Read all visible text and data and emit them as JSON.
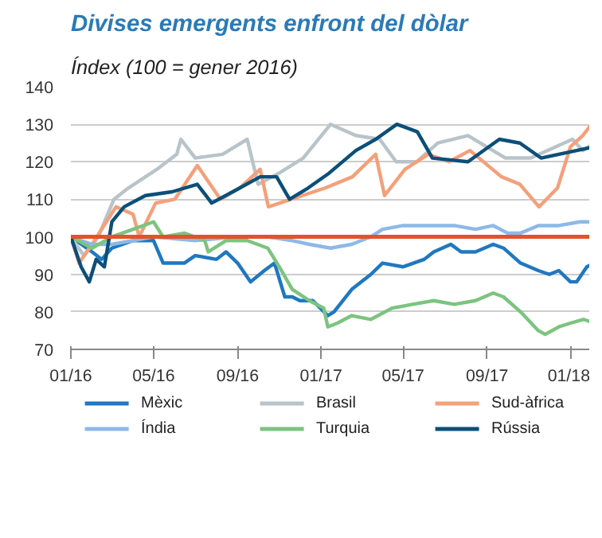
{
  "chart_data": {
    "type": "line",
    "title": "Divises emergents enfront del dòlar",
    "subtitle": "Índex (100 = gener 2016)",
    "xlim": [
      "2016-01-01",
      "2018-02-08"
    ],
    "ylim": [
      70,
      140
    ],
    "xticks": [
      {
        "value": "2016-01-01",
        "label": "01/16"
      },
      {
        "value": "2016-05-01",
        "label": "05/16"
      },
      {
        "value": "2016-09-01",
        "label": "09/16"
      },
      {
        "value": "2017-01-01",
        "label": "01/17"
      },
      {
        "value": "2017-05-01",
        "label": "05/17"
      },
      {
        "value": "2017-09-01",
        "label": "09/17"
      },
      {
        "value": "2018-01-01",
        "label": "01/18"
      }
    ],
    "yticks": [
      70,
      80,
      90,
      100,
      110,
      120,
      130,
      140
    ],
    "grid": "y",
    "legend": "bottom",
    "ref_lines": [
      {
        "axis": "y",
        "value": 100,
        "color": "#e5512b"
      }
    ],
    "series": [
      {
        "name": "Mèxic",
        "color": "#1f78c1",
        "x": [
          "2016-01-01",
          "2016-02-01",
          "2016-02-15",
          "2016-03-01",
          "2016-04-01",
          "2016-05-01",
          "2016-05-15",
          "2016-06-15",
          "2016-07-01",
          "2016-08-01",
          "2016-08-15",
          "2016-09-01",
          "2016-09-20",
          "2016-10-10",
          "2016-10-25",
          "2016-11-09",
          "2016-11-20",
          "2016-12-01",
          "2016-12-20",
          "2017-01-11",
          "2017-01-20",
          "2017-02-15",
          "2017-03-15",
          "2017-04-01",
          "2017-05-01",
          "2017-06-01",
          "2017-06-15",
          "2017-07-10",
          "2017-07-25",
          "2017-08-15",
          "2017-09-10",
          "2017-09-25",
          "2017-10-20",
          "2017-11-15",
          "2017-12-01",
          "2017-12-15",
          "2018-01-01",
          "2018-01-10",
          "2018-01-25",
          "2018-02-05"
        ],
        "values": [
          100,
          96,
          94,
          97,
          99,
          99,
          93,
          93,
          95,
          94,
          96,
          93,
          88,
          91,
          93,
          84,
          84,
          83,
          83,
          79,
          80,
          86,
          90,
          93,
          92,
          94,
          96,
          98,
          96,
          96,
          98,
          97,
          93,
          91,
          90,
          91,
          88,
          88,
          92,
          93
        ]
      },
      {
        "name": "Brasil",
        "color": "#b8c4c9",
        "x": [
          "2016-01-01",
          "2016-01-20",
          "2016-02-10",
          "2016-03-04",
          "2016-03-25",
          "2016-05-06",
          "2016-06-04",
          "2016-06-10",
          "2016-07-01",
          "2016-08-10",
          "2016-09-15",
          "2016-10-01",
          "2016-11-01",
          "2016-12-06",
          "2017-01-15",
          "2017-02-21",
          "2017-03-28",
          "2017-04-21",
          "2017-05-21",
          "2017-06-21",
          "2017-08-04",
          "2017-09-28",
          "2017-11-04",
          "2018-01-04",
          "2018-01-19",
          "2018-02-05"
        ],
        "values": [
          100,
          95,
          100,
          110,
          113,
          118,
          122,
          126,
          121,
          122,
          126,
          114,
          117,
          121,
          130,
          127,
          126,
          120,
          120,
          125,
          127,
          121,
          121,
          126,
          123,
          125
        ]
      },
      {
        "name": "Sud-àfrica",
        "color": "#f4a07a",
        "x": [
          "2016-01-01",
          "2016-01-13",
          "2016-02-01",
          "2016-03-07",
          "2016-04-01",
          "2016-04-10",
          "2016-05-04",
          "2016-06-01",
          "2016-07-04",
          "2016-08-07",
          "2016-09-04",
          "2016-10-04",
          "2016-10-16",
          "2017-01-07",
          "2017-02-16",
          "2017-03-22",
          "2017-04-04",
          "2017-05-04",
          "2017-06-07",
          "2017-07-07",
          "2017-08-07",
          "2017-09-22",
          "2017-10-19",
          "2017-11-16",
          "2017-12-13",
          "2018-01-01",
          "2018-01-19",
          "2018-02-05"
        ],
        "values": [
          100,
          93,
          98,
          108,
          106,
          100,
          109,
          110,
          119,
          110,
          113,
          118,
          108,
          113,
          116,
          122,
          111,
          118,
          122,
          120,
          123,
          116,
          114,
          108,
          113,
          124,
          127,
          131
        ]
      },
      {
        "name": "Índia",
        "color": "#8db9e8",
        "x": [
          "2016-01-01",
          "2016-02-01",
          "2016-03-01",
          "2016-04-01",
          "2016-05-01",
          "2016-07-01",
          "2016-09-01",
          "2016-10-15",
          "2016-11-20",
          "2016-12-15",
          "2017-01-15",
          "2017-02-15",
          "2017-03-15",
          "2017-04-01",
          "2017-05-01",
          "2017-06-01",
          "2017-07-15",
          "2017-08-15",
          "2017-09-10",
          "2017-10-01",
          "2017-10-20",
          "2017-11-15",
          "2017-12-15",
          "2018-01-15",
          "2018-02-05"
        ],
        "values": [
          100,
          98,
          98,
          99,
          100,
          99,
          100,
          100,
          99,
          98,
          97,
          98,
          100,
          102,
          103,
          103,
          103,
          102,
          103,
          101,
          101,
          103,
          103,
          104,
          104
        ]
      },
      {
        "name": "Turquia",
        "color": "#7cc47f",
        "x": [
          "2016-01-01",
          "2016-02-01",
          "2016-03-01",
          "2016-04-01",
          "2016-05-01",
          "2016-05-15",
          "2016-06-15",
          "2016-07-15",
          "2016-07-20",
          "2016-08-15",
          "2016-09-15",
          "2016-10-15",
          "2016-11-01",
          "2016-11-20",
          "2016-12-15",
          "2017-01-05",
          "2017-01-11",
          "2017-01-25",
          "2017-02-15",
          "2017-03-15",
          "2017-04-15",
          "2017-05-15",
          "2017-06-15",
          "2017-07-15",
          "2017-08-15",
          "2017-09-10",
          "2017-09-25",
          "2017-10-20",
          "2017-11-15",
          "2017-11-25",
          "2017-12-15",
          "2018-01-01",
          "2018-01-20",
          "2018-02-05"
        ],
        "values": [
          100,
          97,
          100,
          102,
          104,
          100,
          101,
          99,
          96,
          99,
          99,
          97,
          92,
          86,
          83,
          81,
          76,
          77,
          79,
          78,
          81,
          82,
          83,
          82,
          83,
          85,
          84,
          80,
          75,
          74,
          76,
          77,
          78,
          77
        ]
      },
      {
        "name": "Rússia",
        "color": "#0b4f79",
        "x": [
          "2016-01-01",
          "2016-01-16",
          "2016-01-28",
          "2016-02-07",
          "2016-02-19",
          "2016-03-01",
          "2016-03-19",
          "2016-04-19",
          "2016-05-28",
          "2016-07-04",
          "2016-07-25",
          "2016-09-04",
          "2016-10-04",
          "2016-10-28",
          "2016-11-16",
          "2016-12-13",
          "2017-01-13",
          "2017-02-21",
          "2017-03-22",
          "2017-04-22",
          "2017-05-22",
          "2017-06-13",
          "2017-08-04",
          "2017-09-19",
          "2017-10-19",
          "2017-11-19",
          "2018-02-05"
        ],
        "values": [
          100,
          92,
          88,
          94,
          92,
          104,
          108,
          111,
          112,
          114,
          109,
          113,
          116,
          116,
          110,
          113,
          117,
          123,
          126,
          130,
          128,
          121,
          120,
          126,
          125,
          121,
          124
        ]
      }
    ]
  }
}
